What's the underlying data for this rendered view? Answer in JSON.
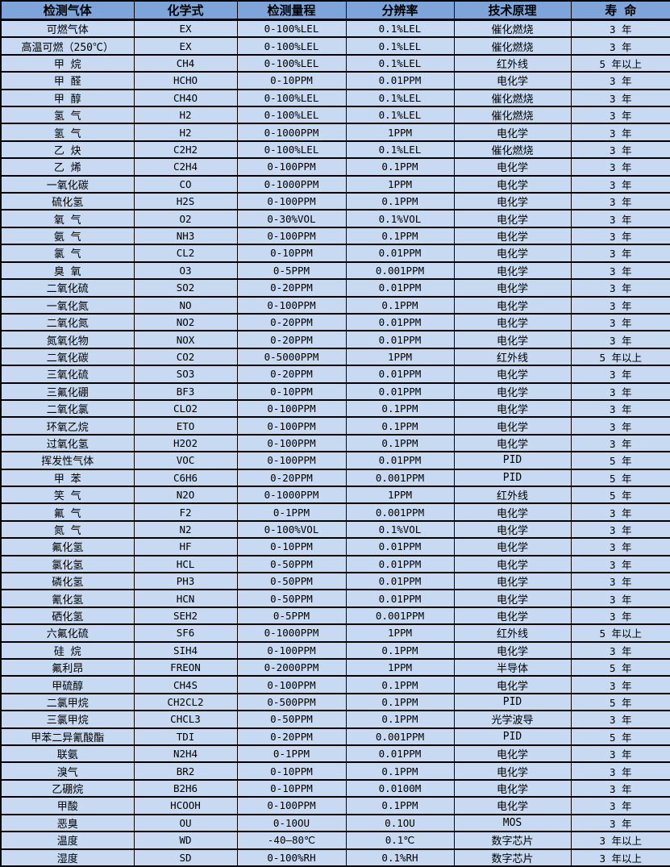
{
  "colors": {
    "header_bg": "#7ea5d9",
    "row_bg": "#c7daf1",
    "border": "#000000",
    "text": "#000000"
  },
  "table": {
    "headers": [
      "检测气体",
      "化学式",
      "检测量程",
      "分辨率",
      "技术原理",
      "寿 命"
    ],
    "column_keys": [
      "gas-name",
      "formula",
      "range",
      "resolution",
      "principle",
      "lifespan"
    ],
    "rows": [
      [
        "可燃气体",
        "EX",
        "0-100%LEL",
        "0.1%LEL",
        "催化燃烧",
        "3 年"
      ],
      [
        "高温可燃（250℃）",
        "EX",
        "0-100%LEL",
        "0.1%LEL",
        "催化燃烧",
        "3 年"
      ],
      [
        "甲 烷",
        "CH4",
        "0-100%LEL",
        "0.1%LEL",
        "红外线",
        "5 年以上"
      ],
      [
        "甲 醛",
        "HCHO",
        "0-10PPM",
        "0.01PPM",
        "电化学",
        "3 年"
      ],
      [
        "甲 醇",
        "CH4O",
        "0-100%LEL",
        "0.1%LEL",
        "催化燃烧",
        "3 年"
      ],
      [
        "氢 气",
        "H2",
        "0-100%LEL",
        "0.1%LEL",
        "催化燃烧",
        "3 年"
      ],
      [
        "氢 气",
        "H2",
        "0-1000PPM",
        "1PPM",
        "电化学",
        "3 年"
      ],
      [
        "乙 炔",
        "C2H2",
        "0-100%LEL",
        "0.1%LEL",
        "催化燃烧",
        "3 年"
      ],
      [
        "乙 烯",
        "C2H4",
        "0-100PPM",
        "0.1PPM",
        "电化学",
        "3 年"
      ],
      [
        "一氧化碳",
        "CO",
        "0-1000PPM",
        "1PPM",
        "电化学",
        "3 年"
      ],
      [
        "硫化氢",
        "H2S",
        "0-100PPM",
        "0.1PPM",
        "电化学",
        "3 年"
      ],
      [
        "氧 气",
        "O2",
        "0-30%VOL",
        "0.1%VOL",
        "电化学",
        "3 年"
      ],
      [
        "氨 气",
        "NH3",
        "0-100PPM",
        "0.1PPM",
        "电化学",
        "3 年"
      ],
      [
        "氯 气",
        "CL2",
        "0-10PPM",
        "0.01PPM",
        "电化学",
        "3 年"
      ],
      [
        "臭 氧",
        "O3",
        "0-5PPM",
        "0.001PPM",
        "电化学",
        "3 年"
      ],
      [
        "二氧化硫",
        "SO2",
        "0-20PPM",
        "0.01PPM",
        "电化学",
        "3 年"
      ],
      [
        "一氧化氮",
        "NO",
        "0-100PPM",
        "0.1PPM",
        "电化学",
        "3 年"
      ],
      [
        "二氧化氮",
        "NO2",
        "0-20PPM",
        "0.01PPM",
        "电化学",
        "3 年"
      ],
      [
        "氮氧化物",
        "NOX",
        "0-20PPM",
        "0.01PPM",
        "电化学",
        "3 年"
      ],
      [
        "二氧化碳",
        "CO2",
        "0-5000PPM",
        "1PPM",
        "红外线",
        "5 年以上"
      ],
      [
        "三氧化硫",
        "SO3",
        "0-20PPM",
        "0.01PPM",
        "电化学",
        "3 年"
      ],
      [
        "三氟化硼",
        "BF3",
        "0-10PPM",
        "0.01PPM",
        "电化学",
        "3 年"
      ],
      [
        "二氧化氯",
        "CLO2",
        "0-100PPM",
        "0.1PPM",
        "电化学",
        "3 年"
      ],
      [
        "环氧乙烷",
        "ETO",
        "0-100PPM",
        "0.1PPM",
        "电化学",
        "3 年"
      ],
      [
        "过氧化氢",
        "H2O2",
        "0-100PPM",
        "0.1PPM",
        "电化学",
        "3 年"
      ],
      [
        "挥发性气体",
        "VOC",
        "0-100PPM",
        "0.01PPM",
        "PID",
        "5 年"
      ],
      [
        "甲 苯",
        "C6H6",
        "0-20PPM",
        "0.001PPM",
        "PID",
        "5 年"
      ],
      [
        "笑 气",
        "N2O",
        "0-1000PPM",
        "1PPM",
        "红外线",
        "5 年"
      ],
      [
        "氟 气",
        "F2",
        "0-1PPM",
        "0.001PPM",
        "电化学",
        "3 年"
      ],
      [
        "氮 气",
        "N2",
        "0-100%VOL",
        "0.1%VOL",
        "电化学",
        "3 年"
      ],
      [
        "氟化氢",
        "HF",
        "0-10PPM",
        "0.01PPM",
        "电化学",
        "3 年"
      ],
      [
        "氯化氢",
        "HCL",
        "0-50PPM",
        "0.01PPM",
        "电化学",
        "3 年"
      ],
      [
        "磷化氢",
        "PH3",
        "0-50PPM",
        "0.01PPM",
        "电化学",
        "3 年"
      ],
      [
        "氰化氢",
        "HCN",
        "0-50PPM",
        "0.01PPM",
        "电化学",
        "3 年"
      ],
      [
        "硒化氢",
        "SEH2",
        "0-5PPM",
        "0.001PPM",
        "电化学",
        "3 年"
      ],
      [
        "六氟化硫",
        "SF6",
        "0-1000PPM",
        "1PPM",
        "红外线",
        "5 年以上"
      ],
      [
        "硅 烷",
        "SIH4",
        "0-100PPM",
        "0.1PPM",
        "电化学",
        "3 年"
      ],
      [
        "氟利昂",
        "FREON",
        "0-2000PPM",
        "1PPM",
        "半导体",
        "5 年"
      ],
      [
        "甲硫醇",
        "CH4S",
        "0-100PPM",
        "0.1PPM",
        "电化学",
        "3 年"
      ],
      [
        "二氯甲烷",
        "CH2CL2",
        "0-500PPM",
        "0.1PPM",
        "PID",
        "5 年"
      ],
      [
        "三氯甲烷",
        "CHCL3",
        "0-50PPM",
        "0.1PPM",
        "光学波导",
        "3 年"
      ],
      [
        "甲苯二异氰酸酯",
        "TDI",
        "0-20PPM",
        "0.001PPM",
        "PID",
        "5 年"
      ],
      [
        "联氨",
        "N2H4",
        "0-1PPM",
        "0.01PPM",
        "电化学",
        "3 年"
      ],
      [
        "溴气",
        "BR2",
        "0-10PPM",
        "0.1PPM",
        "电化学",
        "3 年"
      ],
      [
        "乙硼烷",
        "B2H6",
        "0-10PPM",
        "0.0100M",
        "电化学",
        "3 年"
      ],
      [
        "甲酸",
        "HCOOH",
        "0-100PPM",
        "0.1PPM",
        "电化学",
        "3 年"
      ],
      [
        "恶臭",
        "OU",
        "0-10OU",
        "0.1OU",
        "MOS",
        "3 年"
      ],
      [
        "温度",
        "WD",
        "-40—80℃",
        "0.1℃",
        "数字芯片",
        "3 年以上"
      ],
      [
        "湿度",
        "SD",
        "0-100%RH",
        "0.1%RH",
        "数字芯片",
        "3 年以上"
      ]
    ]
  }
}
